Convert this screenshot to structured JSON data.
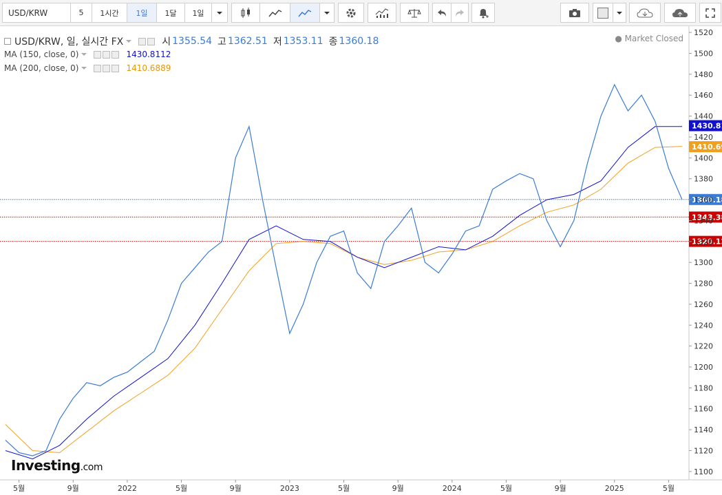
{
  "toolbar": {
    "symbol": "USD/KRW",
    "intervals": [
      "5",
      "1시간",
      "1일",
      "1달"
    ],
    "active_interval": "1일",
    "range": "1일"
  },
  "legend": {
    "main": {
      "title": "USD/KRW, 일, 실시간 FX",
      "o_label": "시",
      "o": "1355.54",
      "h_label": "고",
      "h": "1362.51",
      "l_label": "저",
      "l": "1353.11",
      "c_label": "종",
      "c": "1360.18"
    },
    "ma150": {
      "label": "MA (150, close, 0)",
      "value": "1430.8112",
      "color": "#1010d0"
    },
    "ma200": {
      "label": "MA (200, close, 0)",
      "value": "1410.6889",
      "color": "#f0a020"
    },
    "status": "Market Closed"
  },
  "logo": {
    "brand": "Investing",
    "suffix": ".com"
  },
  "colors": {
    "price": "#3a7bd5",
    "ma150": "#1010d0",
    "ma200": "#f0a020",
    "support": "#cc0000"
  },
  "chart_data": {
    "type": "line",
    "y_axis": {
      "ticks": [
        1100,
        1120,
        1140,
        1160,
        1180,
        1200,
        1220,
        1240,
        1260,
        1280,
        1300,
        1320,
        1340,
        1360,
        1380,
        1400,
        1420,
        1440,
        1460,
        1480,
        1500,
        1520
      ],
      "ylim": [
        1092,
        1526
      ]
    },
    "x_axis": {
      "labels": [
        "5월",
        "9월",
        "2022",
        "5월",
        "9월",
        "2023",
        "5월",
        "9월",
        "2024",
        "5월",
        "9월",
        "2025",
        "5월"
      ]
    },
    "price_series": {
      "name": "USD/KRW",
      "x": [
        "2021-04",
        "2021-05",
        "2021-06",
        "2021-07",
        "2021-08",
        "2021-09",
        "2021-10",
        "2021-11",
        "2021-12",
        "2022-01",
        "2022-02",
        "2022-03",
        "2022-04",
        "2022-05",
        "2022-06",
        "2022-07",
        "2022-08",
        "2022-09",
        "2022-10",
        "2022-11",
        "2022-12",
        "2023-01",
        "2023-02",
        "2023-03",
        "2023-04",
        "2023-05",
        "2023-06",
        "2023-07",
        "2023-08",
        "2023-09",
        "2023-10",
        "2023-11",
        "2023-12",
        "2024-01",
        "2024-02",
        "2024-03",
        "2024-04",
        "2024-05",
        "2024-06",
        "2024-07",
        "2024-08",
        "2024-09",
        "2024-10",
        "2024-11",
        "2024-12",
        "2025-01",
        "2025-02",
        "2025-03",
        "2025-04",
        "2025-05",
        "2025-06"
      ],
      "values": [
        1130,
        1118,
        1115,
        1120,
        1150,
        1170,
        1185,
        1182,
        1190,
        1195,
        1205,
        1215,
        1245,
        1280,
        1295,
        1310,
        1320,
        1400,
        1430,
        1360,
        1295,
        1232,
        1260,
        1300,
        1325,
        1330,
        1290,
        1275,
        1320,
        1335,
        1352,
        1300,
        1290,
        1308,
        1330,
        1335,
        1370,
        1378,
        1385,
        1380,
        1340,
        1315,
        1340,
        1395,
        1440,
        1470,
        1445,
        1460,
        1435,
        1390,
        1360
      ]
    },
    "ma150_series": {
      "name": "MA (150, close, 0)",
      "x": [
        "2021-04",
        "2021-06",
        "2021-08",
        "2021-10",
        "2021-12",
        "2022-02",
        "2022-04",
        "2022-06",
        "2022-08",
        "2022-10",
        "2022-12",
        "2023-02",
        "2023-04",
        "2023-06",
        "2023-08",
        "2023-10",
        "2023-12",
        "2024-02",
        "2024-04",
        "2024-06",
        "2024-08",
        "2024-10",
        "2024-12",
        "2025-02",
        "2025-04",
        "2025-06"
      ],
      "values": [
        1120,
        1112,
        1125,
        1150,
        1172,
        1190,
        1208,
        1240,
        1280,
        1322,
        1335,
        1322,
        1320,
        1305,
        1295,
        1305,
        1315,
        1312,
        1325,
        1345,
        1360,
        1365,
        1378,
        1410,
        1430,
        1430
      ]
    },
    "ma200_series": {
      "name": "MA (200, close, 0)",
      "x": [
        "2021-04",
        "2021-06",
        "2021-08",
        "2021-10",
        "2021-12",
        "2022-02",
        "2022-04",
        "2022-06",
        "2022-08",
        "2022-10",
        "2022-12",
        "2023-02",
        "2023-04",
        "2023-06",
        "2023-08",
        "2023-10",
        "2023-12",
        "2024-02",
        "2024-04",
        "2024-06",
        "2024-08",
        "2024-10",
        "2024-12",
        "2025-02",
        "2025-04",
        "2025-06"
      ],
      "values": [
        1145,
        1120,
        1118,
        1138,
        1158,
        1175,
        1192,
        1218,
        1255,
        1292,
        1318,
        1320,
        1318,
        1305,
        1298,
        1302,
        1310,
        1312,
        1320,
        1335,
        1348,
        1355,
        1370,
        1395,
        1410,
        1411
      ]
    },
    "hlines": [
      {
        "value": 1360.18,
        "label": "1360.18",
        "color": "#3a7bd5",
        "dash": "dotted"
      },
      {
        "value": 1343.38,
        "label": "1343.38",
        "color": "#cc0000",
        "dash": "dotted"
      },
      {
        "value": 1320.12,
        "label": "1320.12",
        "color": "#cc0000",
        "dash": "dotted"
      }
    ],
    "markers": [
      {
        "value": 1430.81,
        "label": "1430.81",
        "color": "#1010d0"
      },
      {
        "value": 1410.69,
        "label": "1410.69",
        "color": "#f0a020"
      }
    ]
  }
}
